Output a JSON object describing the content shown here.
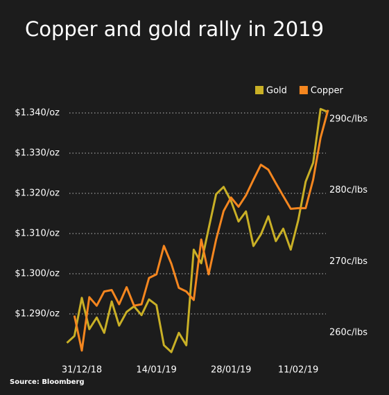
{
  "chart_data": {
    "type": "line",
    "title": "Copper and gold rally in 2019",
    "source": "Source: Bloomberg",
    "categories": [
      null,
      null,
      "31/12/18",
      null,
      null,
      null,
      null,
      null,
      null,
      null,
      null,
      null,
      "14/01/19",
      null,
      null,
      null,
      null,
      null,
      null,
      null,
      null,
      null,
      "28/01/19",
      null,
      null,
      null,
      null,
      null,
      null,
      null,
      null,
      "11/02/19",
      null,
      null,
      null,
      null
    ],
    "series": [
      {
        "name": "Gold",
        "color": "#c9b026",
        "axis": "y",
        "values": [
          1282.8,
          1284.5,
          1294,
          1286.2,
          1289.1,
          1285.3,
          1293.1,
          1287.1,
          1290.5,
          1291.9,
          1289.7,
          1293.6,
          1292.2,
          1282.2,
          1280.5,
          1285.3,
          1282.2,
          1306,
          1302.6,
          1311.2,
          1319.8,
          1321.6,
          1318.1,
          1313,
          1315.5,
          1306.9,
          1309.8,
          1314.3,
          1308.1,
          1311.2,
          1306,
          1313.3,
          1322.9,
          1327.6,
          1341,
          1340.2
        ]
      },
      {
        "name": "Copper",
        "color": "#f5861f",
        "axis": "y2",
        "values": [
          null,
          262.4,
          257.5,
          265,
          263.8,
          265.8,
          266,
          264,
          266.4,
          263.8,
          264,
          267.7,
          268.2,
          272.2,
          269.7,
          266.3,
          265.8,
          264.6,
          273.1,
          268.2,
          273.1,
          277.1,
          279,
          277.7,
          279.3,
          281.5,
          283.6,
          282.9,
          281,
          279.2,
          277.4,
          277.5,
          277.5,
          281.5,
          287.4,
          291.3
        ]
      }
    ],
    "ylim": [
      1280,
      1342
    ],
    "yticks": [
      {
        "value": 1290,
        "label": "$1.290/oz"
      },
      {
        "value": 1300,
        "label": "$1.300/oz"
      },
      {
        "value": 1310,
        "label": "$1.310/oz"
      },
      {
        "value": 1320,
        "label": "$1.320/oz"
      },
      {
        "value": 1330,
        "label": "$1.330/oz"
      },
      {
        "value": 1340,
        "label": "$1.340/oz"
      }
    ],
    "y2lim": [
      257,
      292
    ],
    "y2ticks": [
      {
        "value": 260,
        "label": "260c/lbs"
      },
      {
        "value": 270,
        "label": "270c/lbs"
      },
      {
        "value": 280,
        "label": "280c/lbs"
      },
      {
        "value": 290,
        "label": "290c/lbs"
      }
    ],
    "grid": true,
    "legend": "top-right"
  }
}
